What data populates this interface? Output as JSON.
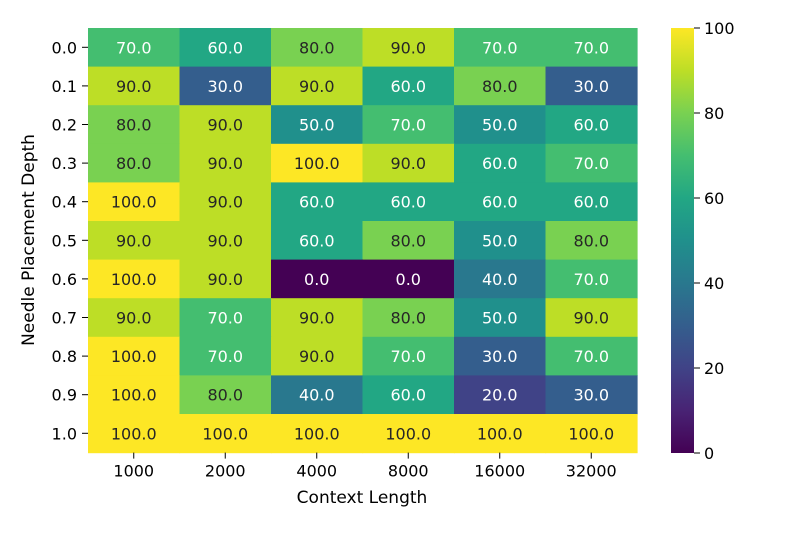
{
  "chart_data": {
    "type": "heatmap",
    "title": "",
    "xlabel": "Context Length",
    "ylabel": "Needle Placement Depth",
    "x_categories": [
      "1000",
      "2000",
      "4000",
      "8000",
      "16000",
      "32000"
    ],
    "y_categories": [
      "0.0",
      "0.1",
      "0.2",
      "0.3",
      "0.4",
      "0.5",
      "0.6",
      "0.7",
      "0.8",
      "0.9",
      "1.0"
    ],
    "values": [
      [
        70,
        60,
        80,
        90,
        70,
        70
      ],
      [
        90,
        30,
        90,
        60,
        80,
        30
      ],
      [
        80,
        90,
        50,
        70,
        50,
        60
      ],
      [
        80,
        90,
        100,
        90,
        60,
        70
      ],
      [
        100,
        90,
        60,
        60,
        60,
        60
      ],
      [
        90,
        90,
        60,
        80,
        50,
        80
      ],
      [
        100,
        90,
        0,
        0,
        40,
        70
      ],
      [
        90,
        70,
        90,
        80,
        50,
        90
      ],
      [
        100,
        70,
        90,
        70,
        30,
        70
      ],
      [
        100,
        80,
        40,
        60,
        20,
        30
      ],
      [
        100,
        100,
        100,
        100,
        100,
        100
      ]
    ],
    "value_format": "0.0",
    "colorscale": "viridis",
    "zlim": [
      0,
      100
    ],
    "colorbar_ticks": [
      "0",
      "20",
      "40",
      "60",
      "80",
      "100"
    ],
    "grid": false,
    "legend": "colorbar-right"
  }
}
